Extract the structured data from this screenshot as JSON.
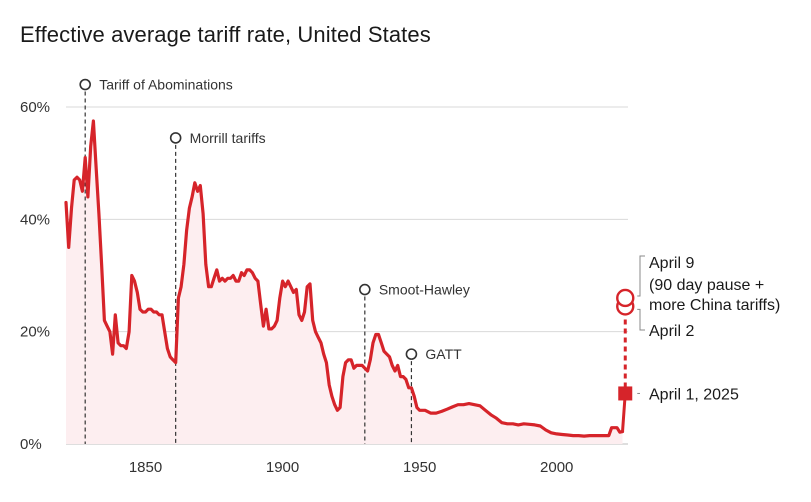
{
  "chart_data": {
    "type": "line",
    "title": "Effective average tariff rate, United States",
    "xlabel": "",
    "ylabel": "",
    "xlim": [
      1821,
      2026
    ],
    "ylim": [
      0,
      60
    ],
    "x_ticks": [
      1850,
      1900,
      1950,
      2000
    ],
    "x_tick_labels": [
      "1850",
      "1900",
      "1950",
      "2000"
    ],
    "y_ticks": [
      0,
      20,
      40,
      60
    ],
    "y_tick_labels": [
      "0%",
      "20%",
      "40%",
      "60%"
    ],
    "grid": "horizontal",
    "colors": {
      "line": "#d6242a",
      "fill": "#fdeef0",
      "grid": "#d9d9d9",
      "marker_line": "#333333"
    },
    "series": [
      {
        "x": [
          1821,
          1822,
          1823,
          1824,
          1825,
          1826,
          1827,
          1828,
          1829,
          1830,
          1831,
          1832,
          1833,
          1834,
          1835,
          1836,
          1837,
          1838,
          1839,
          1840,
          1841,
          1842,
          1843,
          1844,
          1845,
          1846,
          1847,
          1848,
          1849,
          1850,
          1851,
          1852,
          1853,
          1854,
          1855,
          1856,
          1857,
          1858,
          1859,
          1860,
          1861,
          1862,
          1863,
          1864,
          1865,
          1866,
          1867,
          1868,
          1869,
          1870,
          1871,
          1872,
          1873,
          1874,
          1875,
          1876,
          1877,
          1878,
          1879,
          1880,
          1881,
          1882,
          1883,
          1884,
          1885,
          1886,
          1887,
          1888,
          1889,
          1890,
          1891,
          1892,
          1893,
          1894,
          1895,
          1896,
          1897,
          1898,
          1899,
          1900,
          1901,
          1902,
          1903,
          1904,
          1905,
          1906,
          1907,
          1908,
          1909,
          1910,
          1911,
          1912,
          1913,
          1914,
          1915,
          1916,
          1917,
          1918,
          1919,
          1920,
          1921,
          1922,
          1923,
          1924,
          1925,
          1926,
          1927,
          1928,
          1929,
          1930,
          1931,
          1932,
          1933,
          1934,
          1935,
          1936,
          1937,
          1938,
          1939,
          1940,
          1941,
          1942,
          1943,
          1944,
          1945,
          1946,
          1947,
          1948,
          1949,
          1950,
          1952,
          1954,
          1956,
          1958,
          1960,
          1962,
          1964,
          1966,
          1968,
          1970,
          1972,
          1974,
          1976,
          1978,
          1980,
          1982,
          1984,
          1986,
          1988,
          1990,
          1992,
          1994,
          1996,
          1998,
          2000,
          2002,
          2004,
          2006,
          2008,
          2010,
          2012,
          2014,
          2016,
          2018,
          2019,
          2020,
          2022,
          2023,
          2024
        ],
        "values": [
          43,
          35,
          42,
          47,
          47.5,
          47,
          45,
          51,
          44,
          53,
          57.5,
          49,
          41,
          32,
          22,
          21,
          20,
          16,
          23,
          18,
          17.5,
          17.5,
          17,
          20,
          30,
          29,
          27,
          24,
          23.5,
          23.5,
          24,
          24,
          23.5,
          23.5,
          23,
          23,
          20,
          17,
          15.5,
          15,
          14.5,
          26,
          28,
          32,
          38,
          42,
          44,
          46.5,
          45,
          46,
          41,
          32,
          28,
          28,
          29.5,
          31,
          29,
          29.5,
          29,
          29.5,
          29.5,
          30,
          29,
          29,
          30.5,
          30,
          31,
          31,
          30.5,
          29.5,
          29,
          25,
          21,
          24,
          20.5,
          20.5,
          21,
          22,
          26,
          29,
          28,
          29,
          28,
          27,
          27.5,
          23,
          22,
          23.5,
          28,
          28.5,
          22,
          20,
          19,
          18,
          16,
          14.5,
          10.5,
          8.5,
          7,
          6,
          6.5,
          12,
          14.5,
          15,
          15,
          13.5,
          14,
          14,
          14,
          13.5,
          13,
          15,
          18,
          19.5,
          19.5,
          18,
          16.5,
          16,
          15.5,
          14,
          13,
          14,
          12,
          12,
          11.5,
          10,
          10,
          8.5,
          6.5,
          6,
          6,
          5.5,
          5.5,
          5.8,
          6.2,
          6.6,
          7,
          7,
          7.2,
          7,
          6.8,
          6,
          5.2,
          4.6,
          3.8,
          3.6,
          3.6,
          3.4,
          3.6,
          3.5,
          3.4,
          3.2,
          2.5,
          2,
          1.8,
          1.7,
          1.6,
          1.5,
          1.5,
          1.4,
          1.5,
          1.5,
          1.5,
          1.5,
          1.5,
          2.9,
          2.9,
          2.1,
          2.2
        ]
      }
    ],
    "annotations": [
      {
        "label": "Tariff of Abominations",
        "x": 1828,
        "y": 64
      },
      {
        "label": "Morrill tariffs",
        "x": 1861,
        "y": 54.5
      },
      {
        "label": "Smoot-Hawley",
        "x": 1930,
        "y": 27.5
      },
      {
        "label": "GATT",
        "x": 1947,
        "y": 16
      }
    ],
    "april_points": [
      {
        "label": "April 1, 2025",
        "x": 2025,
        "y": 9,
        "marker": "square"
      },
      {
        "label": "April 2",
        "x": 2025,
        "y": 24.5,
        "marker": "open-circle"
      },
      {
        "label": "April 9",
        "x": 2025,
        "y": 26,
        "marker": "open-circle"
      }
    ],
    "april9_note_lines": [
      "(90 day pause +",
      "more China tariffs)"
    ]
  }
}
